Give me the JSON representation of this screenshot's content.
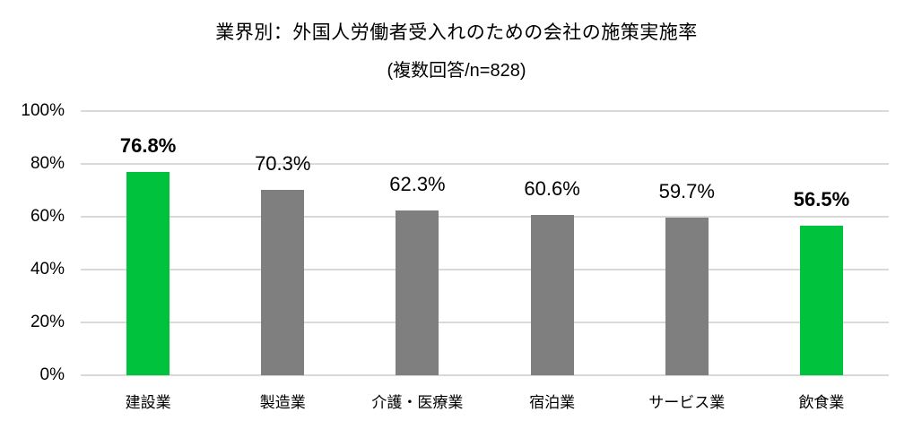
{
  "header": {
    "title": "業界別：外国人労働者受入れのための会社の施策実施率",
    "subtitle": "(複数回答/n=828)"
  },
  "chart_data": {
    "type": "bar",
    "title": "業界別：外国人労働者受入れのための会社の施策実施率",
    "subtitle": "(複数回答/n=828)",
    "categories": [
      "建設業",
      "製造業",
      "介護・医療業",
      "宿泊業",
      "サービス業",
      "飲食業"
    ],
    "values": [
      76.8,
      70.3,
      62.3,
      60.6,
      59.7,
      56.5
    ],
    "value_labels": [
      "76.8%",
      "70.3%",
      "62.3%",
      "60.6%",
      "59.7%",
      "56.5%"
    ],
    "highlighted": [
      true,
      false,
      false,
      false,
      false,
      true
    ],
    "bar_colors": [
      "#00C23D",
      "#7F7F7F",
      "#7F7F7F",
      "#7F7F7F",
      "#7F7F7F",
      "#00C23D"
    ],
    "xlabel": "",
    "ylabel": "",
    "ylim": [
      0,
      100
    ],
    "ytick_values": [
      0,
      20,
      40,
      60,
      80,
      100
    ],
    "ytick_labels": [
      "0%",
      "20%",
      "40%",
      "60%",
      "80%",
      "100%"
    ],
    "grid": true,
    "legend": false
  },
  "colors": {
    "highlight_green": "#00C23D",
    "bar_gray": "#7F7F7F",
    "gridline": "#D9D9D9",
    "text": "#000000",
    "background": "#FFFFFF"
  }
}
